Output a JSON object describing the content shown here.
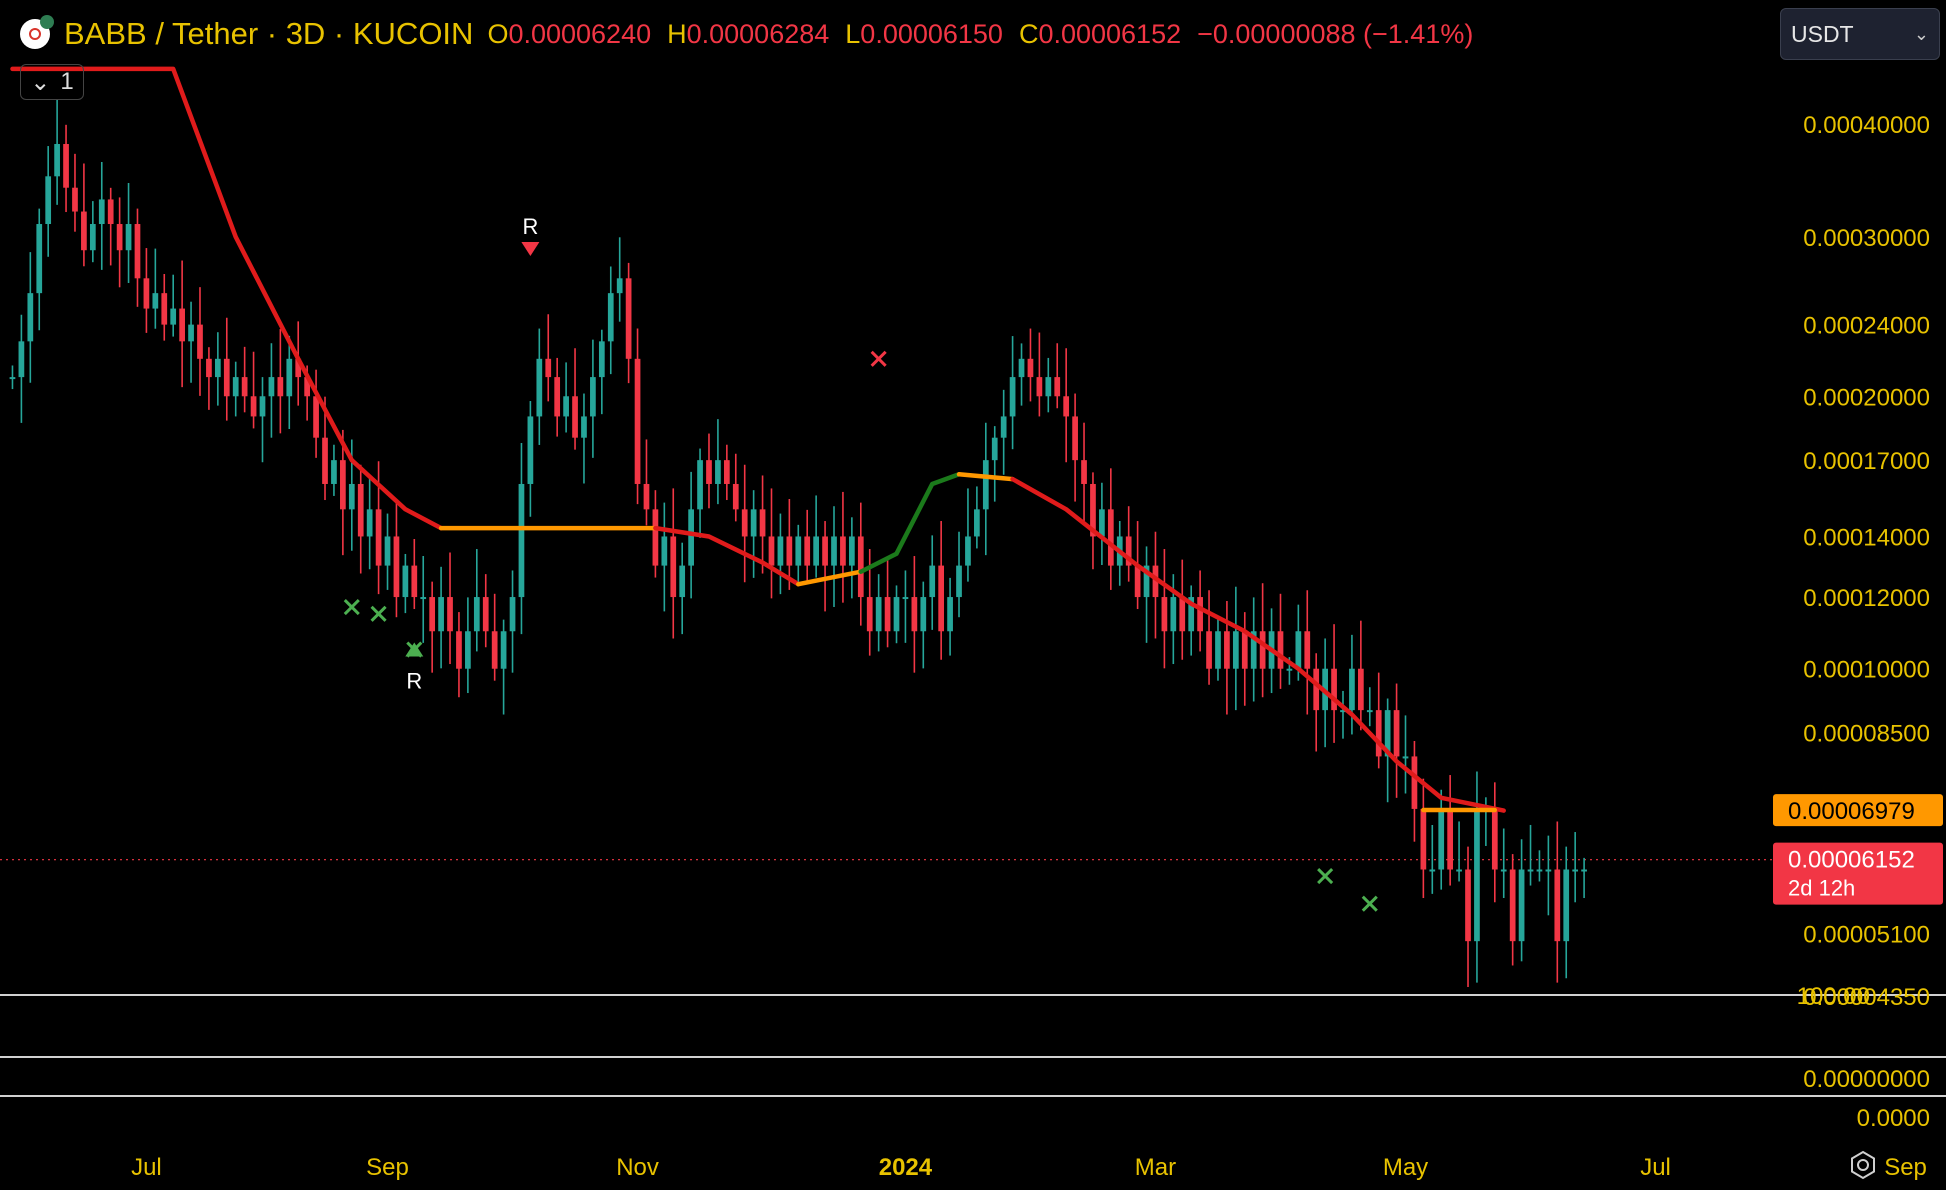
{
  "header": {
    "symbol": "BABB / Tether · 3D · KUCOIN",
    "o_label": "O",
    "o_value": "0.00006240",
    "h_label": "H",
    "h_value": "0.00006284",
    "l_label": "L",
    "l_value": "0.00006150",
    "c_label": "C",
    "c_value": "0.00006152",
    "change": "−0.00000088 (−1.41%)",
    "logo_icon": "babb-logo-icon"
  },
  "indicator_toggle": {
    "label": "1",
    "icon": "chevron-down-icon"
  },
  "currency_select": {
    "value": "USDT",
    "icon": "chevron-down-icon"
  },
  "settings_icon": "gear-icon",
  "colors": {
    "up": "#26a69a",
    "down": "#f23645",
    "axis_text": "#e8c200",
    "trail_red": "#e01b1b",
    "trail_orange": "#ff9800",
    "trail_green": "#1b7a1b"
  },
  "chart_data": {
    "type": "candlestick",
    "scale": "log",
    "ylim": [
      4.36e-05,
      0.000425
    ],
    "y_tick_labels": [
      "0.00040000",
      "0.00030000",
      "0.00024000",
      "0.00020000",
      "0.00017000",
      "0.00014000",
      "0.00012000",
      "0.00010000",
      "0.00008500",
      "0.00006979",
      "0.00006152",
      "0.00005100",
      "0.00004350"
    ],
    "y_ticks": [
      0.0004,
      0.0003,
      0.00024,
      0.0002,
      0.00017,
      0.00014,
      0.00012,
      0.0001,
      8.5e-05,
      5.1e-05,
      4.35e-05
    ],
    "x_tick_labels": [
      "Jul",
      "Sep",
      "Nov",
      "2024",
      "Mar",
      "May",
      "Jul",
      "Sep"
    ],
    "x_ticks_bar_index": [
      15,
      42,
      70,
      100,
      128,
      156,
      184,
      212
    ],
    "price_labels": [
      {
        "value": "0.00006979",
        "color": "#ff9800",
        "text_color": "#000000"
      },
      {
        "value": "0.00006152",
        "sub": "2d 12h",
        "color": "#f23645",
        "text_color": "#ffffff"
      }
    ],
    "last_price": 6.152e-05,
    "close_path": [
      0.00021,
      0.00023,
      0.00026,
      0.00031,
      0.00035,
      0.00038,
      0.00034,
      0.00032,
      0.00029,
      0.00031,
      0.00033,
      0.00031,
      0.00029,
      0.00031,
      0.00027,
      0.00025,
      0.00026,
      0.00024,
      0.00025,
      0.00023,
      0.00024,
      0.00022,
      0.00021,
      0.00022,
      0.0002,
      0.00021,
      0.0002,
      0.00019,
      0.0002,
      0.00021,
      0.0002,
      0.00022,
      0.00021,
      0.0002,
      0.00018,
      0.00016,
      0.00017,
      0.00015,
      0.00016,
      0.00014,
      0.00015,
      0.00013,
      0.00014,
      0.00012,
      0.00013,
      0.00012,
      0.00012,
      0.00011,
      0.00012,
      0.00011,
      0.0001,
      0.00011,
      0.00012,
      0.00011,
      0.0001,
      0.00011,
      0.00012,
      0.00016,
      0.00019,
      0.00022,
      0.00021,
      0.00019,
      0.0002,
      0.00018,
      0.00019,
      0.00021,
      0.00023,
      0.00026,
      0.00027,
      0.00022,
      0.00016,
      0.00015,
      0.00013,
      0.00014,
      0.00012,
      0.00013,
      0.00015,
      0.00017,
      0.00016,
      0.00017,
      0.00016,
      0.00015,
      0.00014,
      0.00015,
      0.00014,
      0.00013,
      0.00014,
      0.00013,
      0.00014,
      0.00013,
      0.00014,
      0.00013,
      0.00014,
      0.00013,
      0.00014,
      0.00012,
      0.00011,
      0.00012,
      0.00011,
      0.00012,
      0.00012,
      0.00011,
      0.00012,
      0.00013,
      0.00011,
      0.00012,
      0.00013,
      0.00014,
      0.00015,
      0.00017,
      0.00018,
      0.00019,
      0.00021,
      0.00022,
      0.00021,
      0.0002,
      0.00021,
      0.0002,
      0.00019,
      0.00017,
      0.00016,
      0.00014,
      0.00015,
      0.00013,
      0.00014,
      0.00013,
      0.00012,
      0.00013,
      0.00012,
      0.00011,
      0.00012,
      0.00011,
      0.00012,
      0.00011,
      0.0001,
      0.00011,
      0.0001,
      0.00011,
      0.0001,
      0.00011,
      0.0001,
      0.00011,
      0.0001,
      0.0001,
      0.00011,
      0.0001,
      9e-05,
      0.0001,
      9e-05,
      9e-05,
      0.0001,
      9e-05,
      9e-05,
      8e-05,
      9e-05,
      8e-05,
      8e-05,
      7e-05,
      6e-05,
      6e-05,
      7e-05,
      6e-05,
      6e-05,
      5e-05,
      7e-05,
      7e-05,
      6e-05,
      6e-05,
      5e-05,
      6e-05,
      6e-05,
      6e-05,
      6e-05,
      5e-05,
      6e-05,
      6e-05,
      6e-05
    ],
    "trail_line": {
      "segments": [
        {
          "color": "#e01b1b",
          "points": [
            [
              0,
              0.00046
            ],
            [
              18,
              0.00046
            ],
            [
              25,
              0.0003
            ],
            [
              32,
              0.00022
            ],
            [
              38,
              0.00017
            ],
            [
              44,
              0.00015
            ],
            [
              48,
              0.000143
            ]
          ]
        },
        {
          "color": "#ff9800",
          "points": [
            [
              48,
              0.000143
            ],
            [
              72,
              0.000143
            ]
          ]
        },
        {
          "color": "#e01b1b",
          "points": [
            [
              72,
              0.000143
            ],
            [
              78,
              0.00014
            ],
            [
              84,
              0.000131
            ],
            [
              88,
              0.000124
            ]
          ]
        },
        {
          "color": "#ff9800",
          "points": [
            [
              88,
              0.000124
            ],
            [
              95,
              0.000128
            ]
          ]
        },
        {
          "color": "#1b7a1b",
          "points": [
            [
              95,
              0.000128
            ],
            [
              99,
              0.000134
            ],
            [
              103,
              0.00016
            ],
            [
              106,
              0.000164
            ]
          ]
        },
        {
          "color": "#ff9800",
          "points": [
            [
              106,
              0.000164
            ],
            [
              112,
              0.000162
            ]
          ]
        },
        {
          "color": "#e01b1b",
          "points": [
            [
              112,
              0.000162
            ],
            [
              118,
              0.00015
            ],
            [
              126,
              0.00013
            ],
            [
              132,
              0.000118
            ],
            [
              138,
              0.00011
            ],
            [
              144,
              0.0001
            ],
            [
              150,
              8.9e-05
            ],
            [
              155,
              7.9e-05
            ],
            [
              160,
              7.2e-05
            ],
            [
              167,
              6.97e-05
            ]
          ]
        },
        {
          "color": "#ff9800",
          "points": [
            [
              158,
              6.98e-05
            ],
            [
              166,
              6.98e-05
            ]
          ]
        }
      ]
    },
    "markers": [
      {
        "type": "label",
        "text": "R",
        "bar": 58,
        "price": 0.00028,
        "color": "#f23645",
        "position": "above"
      },
      {
        "type": "label",
        "text": "R",
        "bar": 45,
        "price": 0.000108,
        "color": "#4caf50",
        "position": "below"
      },
      {
        "type": "cross",
        "bar": 38,
        "price": 0.000117,
        "color": "#4caf50"
      },
      {
        "type": "cross",
        "bar": 41,
        "price": 0.000115,
        "color": "#4caf50"
      },
      {
        "type": "cross",
        "bar": 45,
        "price": 0.000105,
        "color": "#4caf50"
      },
      {
        "type": "cross",
        "bar": 97,
        "price": 0.00022,
        "color": "#f23645"
      },
      {
        "type": "cross",
        "bar": 147,
        "price": 5.9e-05,
        "color": "#4caf50"
      },
      {
        "type": "cross",
        "bar": 152,
        "price": 5.5e-05,
        "color": "#4caf50"
      }
    ],
    "lower_panes": [
      {
        "value_label": "100.00"
      },
      {
        "value_label": "0.00000000"
      },
      {
        "value_label": "0.0000"
      }
    ]
  }
}
